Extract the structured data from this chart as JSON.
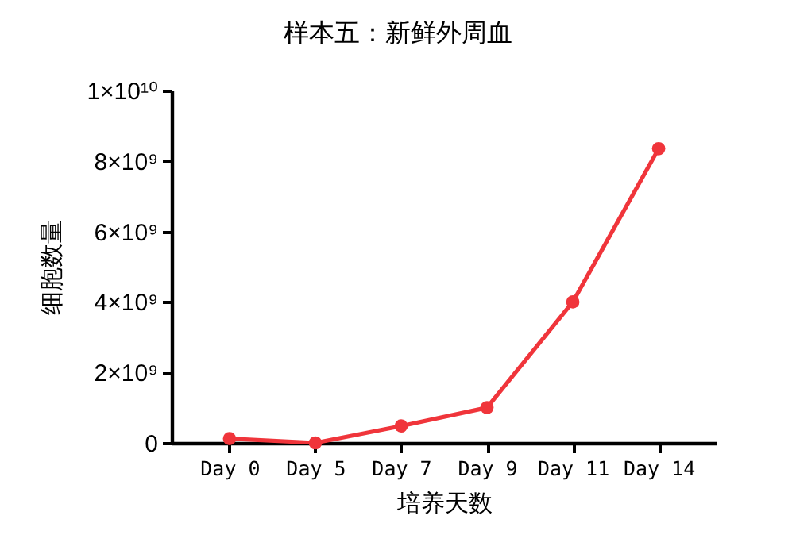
{
  "chart_data": {
    "type": "line",
    "title": "样本五：新鲜外周血",
    "xlabel": "培养天数",
    "ylabel": "细胞数量",
    "categories": [
      "Day 0",
      "Day 5",
      "Day 7",
      "Day 9",
      "Day 11",
      "Day 14"
    ],
    "series": [
      {
        "color": "#f0353b",
        "values": [
          120000000,
          0,
          480000000,
          1000000000,
          4000000000,
          8350000000
        ]
      }
    ],
    "ylim": [
      0,
      10000000000
    ],
    "yticks": [
      0,
      {
        "value": 2000000000,
        "label": "2×10⁹"
      },
      {
        "value": 4000000000,
        "label": "4×10⁹"
      },
      {
        "value": 6000000000,
        "label": "6×10⁹"
      },
      {
        "value": 8000000000,
        "label": "8×10⁹"
      },
      {
        "value": 10000000000,
        "label": "1×10¹⁰"
      }
    ],
    "marker": "circle",
    "line_style": "solid",
    "grid": false
  }
}
